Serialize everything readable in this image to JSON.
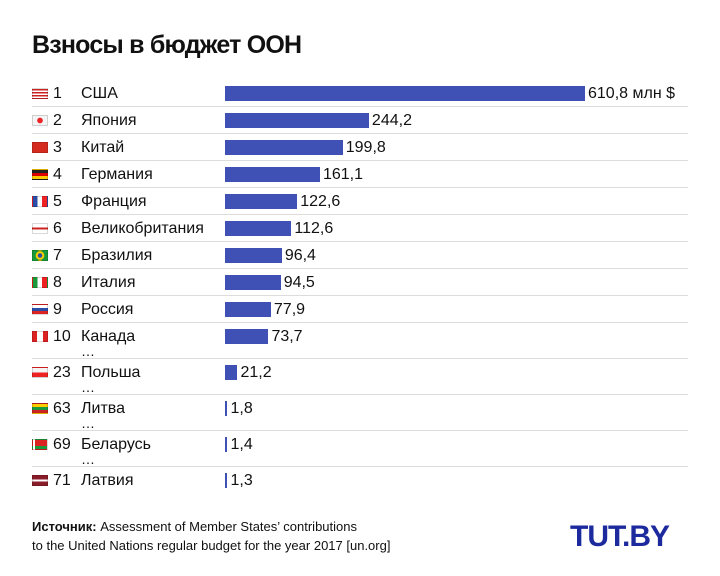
{
  "chart_data": {
    "type": "bar",
    "orientation": "horizontal",
    "title": "Взносы в бюджет ООН",
    "unit_label": "млн $",
    "bar_color": "#3f51b5",
    "rows": [
      {
        "rank": "1",
        "country": "США",
        "value": 610.8,
        "label": "610,8 млн $",
        "flag": "us",
        "ellipsis_after": false
      },
      {
        "rank": "2",
        "country": "Япония",
        "value": 244.2,
        "label": "244,2",
        "flag": "jp",
        "ellipsis_after": false
      },
      {
        "rank": "3",
        "country": "Китай",
        "value": 199.8,
        "label": "199,8",
        "flag": "cn",
        "ellipsis_after": false
      },
      {
        "rank": "4",
        "country": "Германия",
        "value": 161.1,
        "label": "161,1",
        "flag": "de",
        "ellipsis_after": false
      },
      {
        "rank": "5",
        "country": "Франция",
        "value": 122.6,
        "label": "122,6",
        "flag": "fr",
        "ellipsis_after": false
      },
      {
        "rank": "6",
        "country": "Великобритания",
        "value": 112.6,
        "label": "112,6",
        "flag": "gb",
        "ellipsis_after": false
      },
      {
        "rank": "7",
        "country": "Бразилия",
        "value": 96.4,
        "label": "96,4",
        "flag": "br",
        "ellipsis_after": false
      },
      {
        "rank": "8",
        "country": "Италия",
        "value": 94.5,
        "label": "94,5",
        "flag": "it",
        "ellipsis_after": false
      },
      {
        "rank": "9",
        "country": "Россия",
        "value": 77.9,
        "label": "77,9",
        "flag": "ru",
        "ellipsis_after": false
      },
      {
        "rank": "10",
        "country": "Канада",
        "value": 73.7,
        "label": "73,7",
        "flag": "ca",
        "ellipsis_after": true
      },
      {
        "rank": "23",
        "country": "Польша",
        "value": 21.2,
        "label": "21,2",
        "flag": "pl",
        "ellipsis_after": true
      },
      {
        "rank": "63",
        "country": "Литва",
        "value": 1.8,
        "label": "1,8",
        "flag": "lt",
        "ellipsis_after": true
      },
      {
        "rank": "69",
        "country": "Беларусь",
        "value": 1.4,
        "label": "1,4",
        "flag": "by",
        "ellipsis_after": true
      },
      {
        "rank": "71",
        "country": "Латвия",
        "value": 1.3,
        "label": "1,3",
        "flag": "lv",
        "ellipsis_after": false
      }
    ],
    "ellipsis": "…"
  },
  "source": {
    "label": "Источник:",
    "line1": "Assessment of Member States’ contributions",
    "line2": "to the United Nations regular budget for the year 2017 [un.org]"
  },
  "logo": "TUT.BY"
}
